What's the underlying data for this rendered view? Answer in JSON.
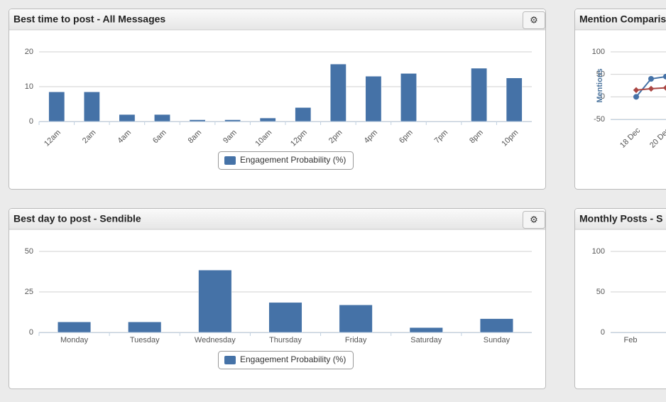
{
  "panels": [
    {
      "title": "Best time to post - All Messages",
      "chart": {
        "type": "bar",
        "categories": [
          "12am",
          "2am",
          "4am",
          "6am",
          "8am",
          "9am",
          "10am",
          "12pm",
          "2pm",
          "4pm",
          "6pm",
          "7pm",
          "8pm",
          "10pm"
        ],
        "series": [
          {
            "name": "Engagement Probability (%)",
            "color": "#4572a7",
            "values": [
              8.5,
              8.5,
              2,
              2,
              0.5,
              0.5,
              1,
              4,
              16.5,
              13,
              13.8,
              0,
              15.3,
              12.5
            ]
          }
        ],
        "ylim": [
          0,
          20
        ],
        "yticks": [
          0,
          10,
          20
        ],
        "grid": true,
        "rotate_labels": true
      }
    },
    {
      "title": "Best day to post - Sendible",
      "chart": {
        "type": "bar",
        "categories": [
          "Monday",
          "Tuesday",
          "Wednesday",
          "Thursday",
          "Friday",
          "Saturday",
          "Sunday"
        ],
        "series": [
          {
            "name": "Engagement Probability (%)",
            "color": "#4572a7",
            "values": [
              6.5,
              6.5,
              38.5,
              18.5,
              17,
              3,
              8.5
            ]
          }
        ],
        "ylim": [
          0,
          50
        ],
        "yticks": [
          0,
          25,
          50
        ],
        "grid": true,
        "rotate_labels": false
      }
    },
    {
      "title": "Mention Comparis",
      "chart": {
        "type": "line",
        "y_label": "Mentions",
        "categories": [
          "18 Dec",
          null,
          "20 Dec"
        ],
        "series": [
          {
            "color": "#4572a7",
            "values": [
              0,
              40,
              45
            ]
          },
          {
            "color": "#aa4643",
            "values": [
              15,
              18,
              20
            ]
          }
        ],
        "ylim": [
          -50,
          100
        ],
        "yticks": [
          -50,
          0,
          50,
          100
        ],
        "grid": true
      }
    },
    {
      "title": "Monthly Posts - S",
      "chart": {
        "type": "empty",
        "categories": [
          "Feb"
        ],
        "ylim": [
          0,
          100
        ],
        "yticks": [
          0,
          50,
          100
        ],
        "grid": true
      }
    }
  ]
}
